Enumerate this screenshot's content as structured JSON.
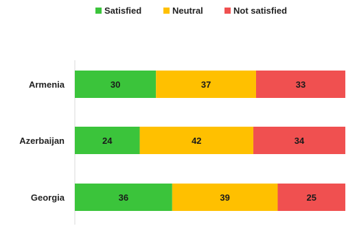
{
  "chart_data": {
    "type": "bar",
    "orientation": "horizontal",
    "stacked": true,
    "categories": [
      "Armenia",
      "Azerbaijan",
      "Georgia"
    ],
    "series": [
      {
        "name": "Satisfied",
        "color": "#3bc43b",
        "values": [
          30,
          24,
          36
        ]
      },
      {
        "name": "Neutral",
        "color": "#ffc000",
        "values": [
          37,
          42,
          39
        ]
      },
      {
        "name": "Not satisfied",
        "color": "#f05050",
        "values": [
          33,
          34,
          25
        ]
      }
    ],
    "xlim": [
      0,
      100
    ],
    "grid": false,
    "legend_position": "top-center",
    "data_labels": true
  }
}
